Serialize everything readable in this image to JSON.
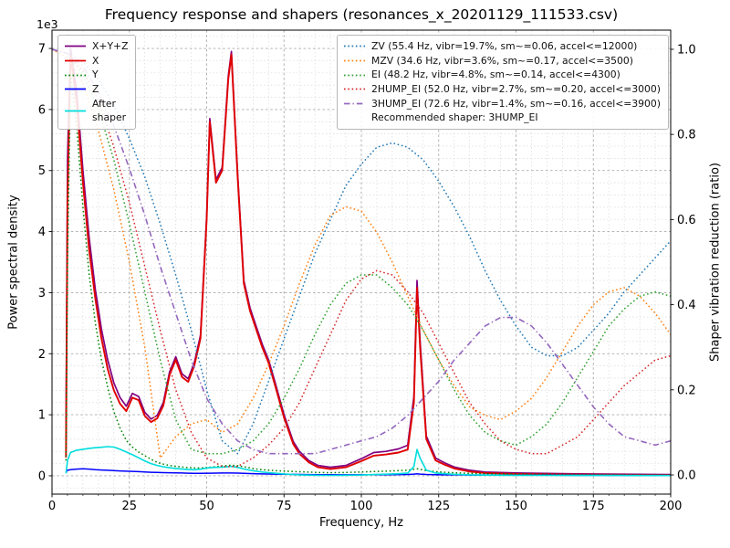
{
  "chart_data": {
    "type": "line",
    "title": "Frequency response and shapers (resonances_x_20201129_111533.csv)",
    "xlabel": "Frequency, Hz",
    "ylabel_left": "Power spectral density",
    "ylabel_right": "Shaper vibration reduction (ratio)",
    "offset_text": "1e3",
    "xlim": [
      0,
      200
    ],
    "ylim_left": [
      -300,
      7300
    ],
    "ylim_right": [
      -0.045,
      1.045
    ],
    "grid": {
      "major": true,
      "minor": true,
      "minor_x_step": 5,
      "minor_y_step": 200
    },
    "legend_position": {
      "psd": "upper left",
      "shapers": "upper right"
    },
    "xticks": {
      "values": [
        0,
        25,
        50,
        75,
        100,
        125,
        150,
        175,
        200
      ],
      "labels": [
        "0",
        "25",
        "50",
        "75",
        "100",
        "125",
        "150",
        "175",
        "200"
      ]
    },
    "yticks_left": {
      "values": [
        0,
        1000,
        2000,
        3000,
        4000,
        5000,
        6000,
        7000
      ],
      "labels": [
        "0",
        "1",
        "2",
        "3",
        "4",
        "5",
        "6",
        "7"
      ]
    },
    "yticks_right": {
      "values": [
        0,
        0.2,
        0.4,
        0.6,
        0.8,
        1.0
      ],
      "labels": [
        "0.0",
        "0.2",
        "0.4",
        "0.6",
        "0.8",
        "1.0"
      ]
    },
    "psd_freqs": [
      4.5,
      5,
      6,
      8,
      10,
      12,
      14,
      16,
      18,
      20,
      22,
      24,
      26,
      28,
      30,
      32,
      34,
      36,
      38,
      40,
      42,
      44,
      46,
      48,
      50,
      51,
      53,
      55,
      57,
      58,
      60,
      62,
      64,
      66,
      68,
      70,
      72,
      75,
      78,
      80,
      83,
      86,
      90,
      95,
      100,
      104,
      108,
      112,
      115,
      117,
      118,
      119,
      121,
      124,
      127,
      130,
      135,
      140,
      150,
      160,
      170,
      180,
      190,
      200
    ],
    "psd_series": [
      {
        "name": "sum",
        "label": "X+Y+Z",
        "color": "#800080",
        "style": "solid",
        "width": 1.7,
        "values": [
          600,
          5200,
          7000,
          6300,
          5000,
          3900,
          3050,
          2400,
          1900,
          1520,
          1280,
          1140,
          1350,
          1300,
          1040,
          930,
          990,
          1200,
          1700,
          1950,
          1670,
          1590,
          1850,
          2300,
          4250,
          5850,
          4850,
          5050,
          6550,
          6950,
          4950,
          3200,
          2750,
          2450,
          2150,
          1900,
          1550,
          1000,
          560,
          400,
          250,
          170,
          140,
          170,
          280,
          380,
          400,
          440,
          500,
          1300,
          3200,
          2200,
          650,
          290,
          210,
          145,
          90,
          60,
          45,
          38,
          32,
          28,
          25,
          20
        ]
      },
      {
        "name": "x",
        "label": "X",
        "color": "#e00000",
        "style": "solid",
        "width": 1.9,
        "values": [
          300,
          4500,
          6900,
          6100,
          4800,
          3700,
          2900,
          2250,
          1750,
          1400,
          1180,
          1060,
          1280,
          1240,
          980,
          880,
          940,
          1150,
          1650,
          1900,
          1620,
          1540,
          1800,
          2250,
          4200,
          5800,
          4800,
          5000,
          6500,
          6900,
          4900,
          3150,
          2700,
          2400,
          2100,
          1850,
          1500,
          950,
          520,
          360,
          220,
          140,
          110,
          140,
          240,
          330,
          350,
          380,
          430,
          1200,
          3080,
          2100,
          600,
          250,
          180,
          120,
          70,
          45,
          30,
          25,
          20,
          18,
          15,
          12
        ]
      },
      {
        "name": "y",
        "label": "Y",
        "color": "#008000",
        "style": "dotted",
        "width": 1.5,
        "values": [
          250,
          3500,
          6600,
          5700,
          4400,
          3300,
          2500,
          1900,
          1450,
          1050,
          780,
          580,
          470,
          390,
          330,
          270,
          220,
          190,
          170,
          155,
          145,
          135,
          130,
          128,
          135,
          140,
          150,
          160,
          170,
          175,
          165,
          148,
          130,
          112,
          100,
          92,
          85,
          78,
          70,
          66,
          60,
          55,
          52,
          55,
          62,
          70,
          76,
          84,
          92,
          105,
          115,
          105,
          85,
          68,
          58,
          50,
          40,
          33,
          26,
          21,
          18,
          15,
          13,
          11
        ]
      },
      {
        "name": "z",
        "label": "Z",
        "color": "#0000ff",
        "style": "solid",
        "width": 1.5,
        "values": [
          60,
          90,
          100,
          110,
          115,
          110,
          100,
          95,
          90,
          85,
          80,
          75,
          72,
          68,
          62,
          58,
          55,
          52,
          50,
          48,
          45,
          42,
          40,
          40,
          42,
          43,
          44,
          45,
          46,
          46,
          44,
          40,
          37,
          34,
          31,
          29,
          27,
          25,
          23,
          22,
          20,
          18,
          17,
          16,
          17,
          18,
          19,
          20,
          22,
          28,
          32,
          28,
          22,
          18,
          16,
          15,
          13,
          12,
          10,
          9,
          8,
          8,
          7,
          7
        ]
      },
      {
        "name": "after-shaper",
        "label": "After\nshaper",
        "color": "#00dddd",
        "style": "solid",
        "width": 1.6,
        "values": [
          40,
          250,
          380,
          420,
          435,
          450,
          460,
          468,
          478,
          470,
          435,
          390,
          345,
          295,
          245,
          200,
          170,
          148,
          132,
          120,
          110,
          102,
          100,
          108,
          125,
          132,
          138,
          142,
          150,
          155,
          138,
          112,
          92,
          76,
          62,
          52,
          42,
          30,
          21,
          16,
          11,
          8,
          7,
          8,
          12,
          20,
          26,
          34,
          45,
          150,
          430,
          290,
          90,
          45,
          33,
          25,
          16,
          11,
          8,
          6,
          5,
          5,
          4,
          4
        ]
      }
    ],
    "shaper_freqs": [
      0,
      5,
      10,
      15,
      20,
      25,
      30,
      35,
      40,
      45,
      50,
      55,
      60,
      65,
      70,
      75,
      80,
      85,
      90,
      95,
      100,
      105,
      110,
      115,
      120,
      125,
      130,
      135,
      140,
      145,
      150,
      155,
      160,
      165,
      170,
      175,
      180,
      185,
      190,
      195,
      200
    ],
    "shaper_series": [
      {
        "name": "zv",
        "label": "ZV (55.4 Hz, vibr=19.7%, sm~=0.06, accel<=12000)",
        "color": "#1f77b4",
        "style": "dotted",
        "width": 1.5,
        "values": [
          1.0,
          0.99,
          0.97,
          0.93,
          0.87,
          0.79,
          0.7,
          0.59,
          0.47,
          0.34,
          0.2,
          0.08,
          0.05,
          0.12,
          0.22,
          0.32,
          0.42,
          0.52,
          0.6,
          0.68,
          0.73,
          0.77,
          0.78,
          0.77,
          0.74,
          0.69,
          0.63,
          0.56,
          0.48,
          0.41,
          0.35,
          0.3,
          0.28,
          0.28,
          0.3,
          0.34,
          0.38,
          0.43,
          0.47,
          0.51,
          0.55
        ]
      },
      {
        "name": "mzv",
        "label": "MZV (34.6 Hz, vibr=3.6%, sm~=0.17, accel<=3500)",
        "color": "#ff7f0e",
        "style": "dotted",
        "width": 1.5,
        "values": [
          1.0,
          0.98,
          0.92,
          0.81,
          0.67,
          0.5,
          0.3,
          0.04,
          0.09,
          0.12,
          0.13,
          0.1,
          0.12,
          0.18,
          0.26,
          0.35,
          0.45,
          0.54,
          0.61,
          0.63,
          0.62,
          0.57,
          0.5,
          0.42,
          0.34,
          0.27,
          0.21,
          0.16,
          0.14,
          0.13,
          0.15,
          0.18,
          0.23,
          0.29,
          0.35,
          0.4,
          0.43,
          0.44,
          0.42,
          0.38,
          0.33
        ]
      },
      {
        "name": "ei",
        "label": "EI (48.2 Hz, vibr=4.8%, sm~=0.14, accel<=4300)",
        "color": "#2ca02c",
        "style": "dotted",
        "width": 1.5,
        "values": [
          1.0,
          0.99,
          0.94,
          0.86,
          0.74,
          0.59,
          0.43,
          0.27,
          0.13,
          0.06,
          0.05,
          0.05,
          0.06,
          0.08,
          0.12,
          0.18,
          0.25,
          0.33,
          0.4,
          0.45,
          0.47,
          0.47,
          0.44,
          0.4,
          0.34,
          0.27,
          0.2,
          0.14,
          0.1,
          0.08,
          0.07,
          0.09,
          0.12,
          0.17,
          0.23,
          0.29,
          0.35,
          0.39,
          0.42,
          0.43,
          0.42
        ]
      },
      {
        "name": "2hump-ei",
        "label": "2HUMP_EI (52.0 Hz, vibr=2.7%, sm~=0.20, accel<=3000)",
        "color": "#d62728",
        "style": "dotted",
        "width": 1.5,
        "values": [
          1.0,
          0.99,
          0.95,
          0.88,
          0.77,
          0.64,
          0.49,
          0.34,
          0.2,
          0.1,
          0.04,
          0.02,
          0.02,
          0.04,
          0.07,
          0.11,
          0.17,
          0.25,
          0.33,
          0.41,
          0.46,
          0.48,
          0.47,
          0.43,
          0.38,
          0.31,
          0.24,
          0.17,
          0.12,
          0.08,
          0.06,
          0.05,
          0.05,
          0.07,
          0.09,
          0.13,
          0.17,
          0.21,
          0.24,
          0.27,
          0.28
        ]
      },
      {
        "name": "3hump-ei",
        "label": "3HUMP_EI (72.6 Hz, vibr=1.4%, sm~=0.16, accel<=3900)",
        "color": "#9467bd",
        "style": "dashdot",
        "width": 1.6,
        "values": [
          1.0,
          0.99,
          0.96,
          0.9,
          0.82,
          0.72,
          0.61,
          0.49,
          0.38,
          0.27,
          0.18,
          0.12,
          0.08,
          0.06,
          0.05,
          0.05,
          0.05,
          0.05,
          0.06,
          0.07,
          0.08,
          0.09,
          0.11,
          0.14,
          0.18,
          0.22,
          0.27,
          0.31,
          0.35,
          0.37,
          0.37,
          0.35,
          0.31,
          0.26,
          0.21,
          0.16,
          0.12,
          0.09,
          0.08,
          0.07,
          0.08
        ]
      }
    ],
    "recommended": "Recommended shaper: 3HUMP_EI"
  }
}
